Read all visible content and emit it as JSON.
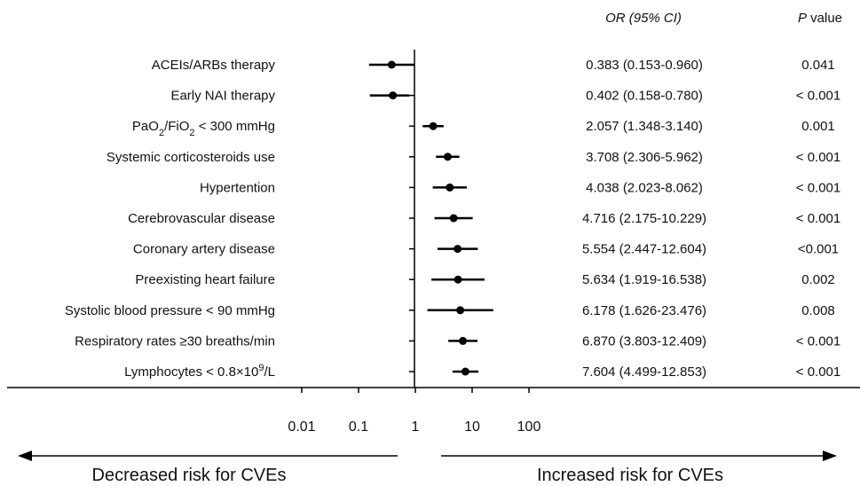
{
  "headers": {
    "or_label": "OR (95% CI)",
    "p_label_italic": "P",
    "p_label_rest": " value"
  },
  "risk_labels": {
    "decreased": "Decreased risk for CVEs",
    "increased": "Increased risk for CVEs"
  },
  "chart_data": {
    "type": "forest",
    "x_scale": "log",
    "xlim": [
      0.01,
      100
    ],
    "reference_line": 1,
    "tick_labels": [
      "0.01",
      "0.1",
      "1",
      "10",
      "100"
    ],
    "tick_values": [
      0.01,
      0.1,
      1,
      10,
      100
    ],
    "rows": [
      {
        "label": "ACEIs/ARBs therapy",
        "or": 0.383,
        "lo": 0.153,
        "hi": 0.96,
        "or_text": "0.383 (0.153-0.960)",
        "p": "0.041"
      },
      {
        "label": "Early NAI therapy",
        "or": 0.402,
        "lo": 0.158,
        "hi": 0.78,
        "or_text": "0.402 (0.158-0.780)",
        "p": "< 0.001"
      },
      {
        "label": "PaO2/FiO2 <  300 mmHg",
        "or": 2.057,
        "lo": 1.348,
        "hi": 3.14,
        "or_text": "2.057 (1.348-3.140)",
        "p": "0.001"
      },
      {
        "label": "Systemic corticosteroids use",
        "or": 3.708,
        "lo": 2.306,
        "hi": 5.962,
        "or_text": "3.708 (2.306-5.962)",
        "p": "< 0.001"
      },
      {
        "label": "Hypertention",
        "or": 4.038,
        "lo": 2.023,
        "hi": 8.062,
        "or_text": "4.038 (2.023-8.062)",
        "p": "< 0.001"
      },
      {
        "label": "Cerebrovascular disease",
        "or": 4.716,
        "lo": 2.175,
        "hi": 10.229,
        "or_text": "4.716 (2.175-10.229)",
        "p": "< 0.001"
      },
      {
        "label": "Coronary artery disease",
        "or": 5.554,
        "lo": 2.447,
        "hi": 12.604,
        "or_text": "5.554 (2.447-12.604)",
        "p": "<0.001"
      },
      {
        "label": "Preexisting heart failure",
        "or": 5.634,
        "lo": 1.919,
        "hi": 16.538,
        "or_text": "5.634 (1.919-16.538)",
        "p": "0.002"
      },
      {
        "label": "Systolic blood pressure < 90 mmHg",
        "or": 6.178,
        "lo": 1.626,
        "hi": 23.476,
        "or_text": "6.178 (1.626-23.476)",
        "p": "0.008"
      },
      {
        "label": "Respiratory rates ≥30 breaths/min",
        "or": 6.87,
        "lo": 3.803,
        "hi": 12.409,
        "or_text": "6.870 (3.803-12.409)",
        "p": "< 0.001"
      },
      {
        "label": "Lymphocytes <  0.8×10⁹/L",
        "or": 7.604,
        "lo": 4.499,
        "hi": 12.853,
        "or_text": "7.604 (4.499-12.853)",
        "p": "< 0.001"
      }
    ]
  }
}
